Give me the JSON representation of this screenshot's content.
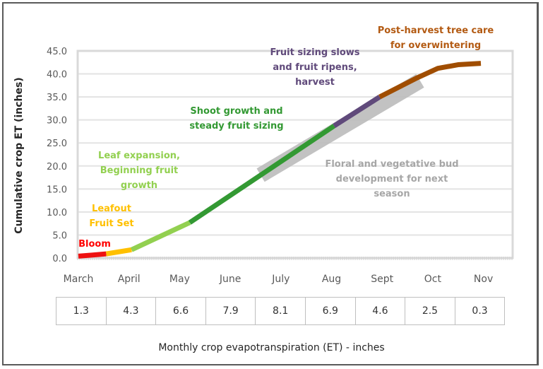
{
  "chart_data": {
    "type": "line",
    "title": "",
    "ylabel": "Cumulative crop ET (inches)",
    "xlabel": "Monthly crop evapotranspiration (ET) - inches",
    "ylim": [
      0,
      45
    ],
    "yticks": [
      "0.0",
      "5.0",
      "10.0",
      "15.0",
      "20.0",
      "25.0",
      "30.0",
      "35.0",
      "40.0",
      "45.0"
    ],
    "ytick_values": [
      0,
      5,
      10,
      15,
      20,
      25,
      30,
      35,
      40,
      45
    ],
    "categories": [
      "March",
      "April",
      "May",
      "June",
      "July",
      "Aug",
      "Sept",
      "Oct",
      "Nov"
    ],
    "grid": true,
    "series": [
      {
        "name": "Bloom",
        "color": "#ee1111",
        "x": [
          0,
          0.55
        ],
        "y": [
          0.4,
          0.9
        ]
      },
      {
        "name": "Leafout Fruit Set",
        "color": "#ffc000",
        "x": [
          0.55,
          1.05
        ],
        "y": [
          0.9,
          1.8
        ]
      },
      {
        "name": "Leaf expansion, Beginning fruit growth",
        "color": "#92d050",
        "x": [
          1.05,
          2.2
        ],
        "y": [
          1.8,
          7.7
        ]
      },
      {
        "name": "Shoot growth and steady fruit sizing",
        "color": "#339933",
        "x": [
          2.2,
          5.05
        ],
        "y": [
          7.7,
          28.7
        ]
      },
      {
        "name": "Fruit sizing slows and fruit ripens, harvest",
        "color": "#604a7b",
        "x": [
          5.05,
          5.95
        ],
        "y": [
          28.7,
          35.0
        ]
      },
      {
        "name": "Post-harvest tree care for overwintering",
        "color": "#a04d00",
        "x": [
          5.95,
          6.7,
          7.1,
          7.5,
          7.95
        ],
        "y": [
          35.0,
          39.2,
          41.2,
          42.0,
          42.3
        ]
      }
    ],
    "highlight_band": {
      "name": "Floral and vegetative bud development for next season",
      "color": "#bfbfbf",
      "x": [
        3.6,
        6.75
      ],
      "y": [
        18.0,
        38.5
      ]
    },
    "annotations": [
      {
        "key": "bloom",
        "lines": [
          "Bloom"
        ],
        "color": "#ff0000"
      },
      {
        "key": "leafout",
        "lines": [
          "Leafout",
          "Fruit Set"
        ],
        "color": "#ffc000"
      },
      {
        "key": "leafexp",
        "lines": [
          "Leaf expansion,",
          "Beginning fruit",
          "growth"
        ],
        "color": "#92d050"
      },
      {
        "key": "shoot",
        "lines": [
          "Shoot growth and",
          "steady fruit sizing"
        ],
        "color": "#339933"
      },
      {
        "key": "fruit",
        "lines": [
          "Fruit sizing slows",
          "and fruit ripens,",
          "harvest"
        ],
        "color": "#604a7b"
      },
      {
        "key": "post",
        "lines": [
          "Post-harvest tree care",
          "for overwintering"
        ],
        "color": "#b35a12"
      },
      {
        "key": "floral",
        "lines": [
          "Floral and vegetative bud",
          "development for next",
          "season"
        ],
        "color": "#a6a6a6"
      }
    ],
    "table": {
      "months": [
        "March",
        "April",
        "May",
        "June",
        "July",
        "Aug",
        "Sept",
        "Oct",
        "Nov"
      ],
      "values": [
        "1.3",
        "4.3",
        "6.6",
        "7.9",
        "8.1",
        "6.9",
        "4.6",
        "2.5",
        "0.3"
      ]
    }
  }
}
